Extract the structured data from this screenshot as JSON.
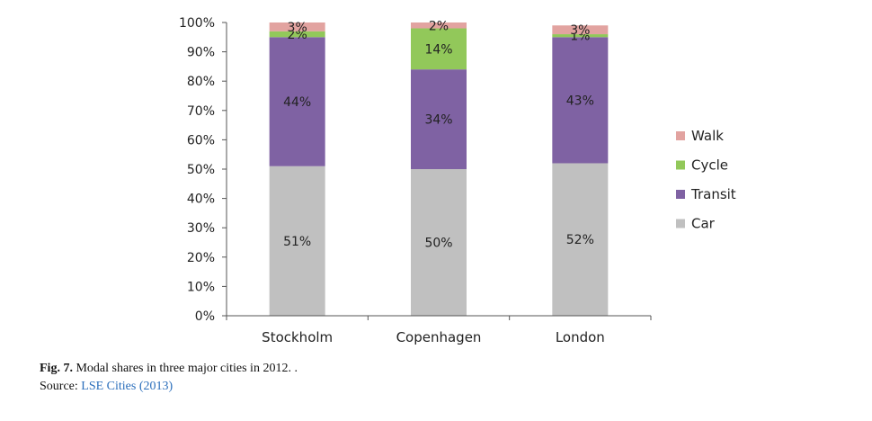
{
  "chart_data": {
    "type": "bar",
    "stacked": true,
    "categories": [
      "Stockholm",
      "Copenhagen",
      "London"
    ],
    "series": [
      {
        "name": "Car",
        "values": [
          51,
          50,
          52
        ],
        "labels": [
          "51%",
          "50%",
          "52%"
        ],
        "color": "#c0c0c0"
      },
      {
        "name": "Transit",
        "values": [
          44,
          34,
          43
        ],
        "labels": [
          "44%",
          "34%",
          "43%"
        ],
        "color": "#7f62a3"
      },
      {
        "name": "Cycle",
        "values": [
          2,
          14,
          1
        ],
        "labels": [
          "2%",
          "14%",
          "1%"
        ],
        "color": "#92c85a"
      },
      {
        "name": "Walk",
        "values": [
          3,
          2,
          3
        ],
        "labels": [
          "3%",
          "2%",
          "3%"
        ],
        "color": "#e2a3a0"
      }
    ],
    "legend_order": [
      "Walk",
      "Cycle",
      "Transit",
      "Car"
    ],
    "legend_position": "right",
    "ylim": [
      0,
      100
    ],
    "yticks": [
      "0%",
      "10%",
      "20%",
      "30%",
      "40%",
      "50%",
      "60%",
      "70%",
      "80%",
      "90%",
      "100%"
    ],
    "grid": false
  },
  "caption": {
    "fig_label": "Fig. 7.",
    "text": " Modal shares in three major cities in 2012. .",
    "source_label": "Source: ",
    "source_link": "LSE Cities (2013)"
  }
}
